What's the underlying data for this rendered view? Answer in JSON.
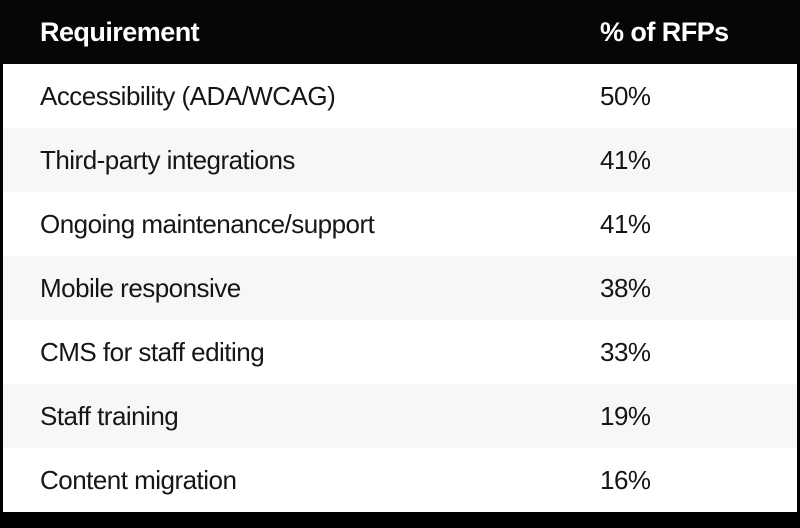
{
  "table": {
    "header": {
      "requirement": "Requirement",
      "pct": "% of RFPs"
    },
    "rows": [
      {
        "requirement": "Accessibility (ADA/WCAG)",
        "pct": "50%"
      },
      {
        "requirement": "Third-party integrations",
        "pct": "41%"
      },
      {
        "requirement": "Ongoing maintenance/support",
        "pct": "41%"
      },
      {
        "requirement": "Mobile responsive",
        "pct": "38%"
      },
      {
        "requirement": "CMS for staff editing",
        "pct": "33%"
      },
      {
        "requirement": "Staff training",
        "pct": "19%"
      },
      {
        "requirement": "Content migration",
        "pct": "16%"
      }
    ]
  },
  "chart_data": {
    "type": "table",
    "title": "",
    "columns": [
      "Requirement",
      "% of RFPs"
    ],
    "categories": [
      "Accessibility (ADA/WCAG)",
      "Third-party integrations",
      "Ongoing maintenance/support",
      "Mobile responsive",
      "CMS for staff editing",
      "Staff training",
      "Content migration"
    ],
    "values": [
      50,
      41,
      41,
      38,
      33,
      19,
      16
    ],
    "unit": "%"
  },
  "colors": {
    "frame": "#000000",
    "header-bg": "#060606",
    "header-text": "#ffffff",
    "row-bg": "#ffffff",
    "row-alt-bg": "#f7f7f7",
    "body-text": "#161616"
  }
}
